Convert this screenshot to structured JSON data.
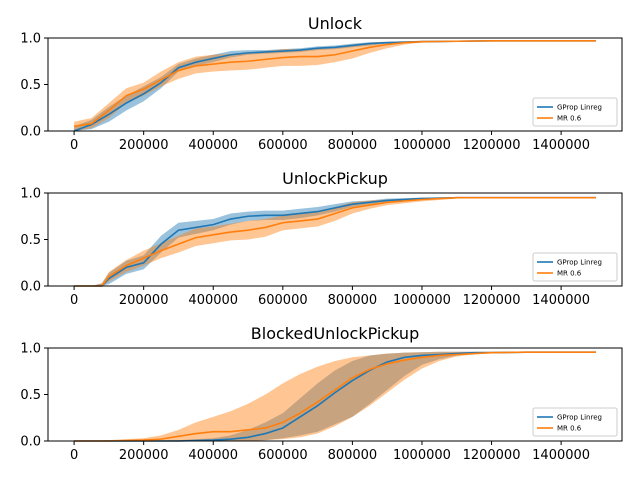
{
  "chart_data": [
    {
      "type": "line",
      "title": "Unlock",
      "xlim": [
        -75000,
        1575000
      ],
      "ylim": [
        0,
        1.0
      ],
      "xticks": [
        0,
        200000,
        400000,
        600000,
        800000,
        1000000,
        1200000,
        1400000
      ],
      "xtick_labels": [
        "0",
        "200000",
        "400000",
        "600000",
        "800000",
        "1000000",
        "1200000",
        "1400000"
      ],
      "yticks": [
        0,
        0.5,
        1.0
      ],
      "ytick_labels": [
        "0.0",
        "0.5",
        "1.0"
      ],
      "legend": "lower-right",
      "grid": false,
      "series": [
        {
          "name": "GProp Linreg",
          "color": "#1f77b4",
          "x": [
            0,
            50000,
            100000,
            150000,
            200000,
            250000,
            300000,
            350000,
            400000,
            450000,
            500000,
            550000,
            600000,
            650000,
            700000,
            750000,
            800000,
            850000,
            900000,
            950000,
            1000000,
            1100000,
            1200000,
            1300000,
            1400000,
            1500000
          ],
          "values": [
            0.0,
            0.07,
            0.18,
            0.3,
            0.4,
            0.52,
            0.68,
            0.74,
            0.78,
            0.82,
            0.84,
            0.85,
            0.86,
            0.87,
            0.89,
            0.9,
            0.92,
            0.94,
            0.95,
            0.955,
            0.96,
            0.965,
            0.97,
            0.97,
            0.97,
            0.97
          ],
          "lower": [
            0.0,
            0.02,
            0.1,
            0.22,
            0.32,
            0.46,
            0.64,
            0.7,
            0.74,
            0.79,
            0.82,
            0.83,
            0.84,
            0.85,
            0.87,
            0.88,
            0.9,
            0.92,
            0.94,
            0.945,
            0.95,
            0.96,
            0.965,
            0.965,
            0.965,
            0.965
          ],
          "upper": [
            0.05,
            0.12,
            0.26,
            0.38,
            0.48,
            0.58,
            0.72,
            0.78,
            0.82,
            0.86,
            0.87,
            0.87,
            0.88,
            0.89,
            0.91,
            0.92,
            0.94,
            0.955,
            0.96,
            0.965,
            0.97,
            0.97,
            0.975,
            0.975,
            0.975,
            0.975
          ]
        },
        {
          "name": "MR 0.6",
          "color": "#ff7f0e",
          "x": [
            0,
            50000,
            100000,
            150000,
            200000,
            250000,
            300000,
            350000,
            400000,
            450000,
            500000,
            550000,
            600000,
            650000,
            700000,
            750000,
            800000,
            850000,
            900000,
            950000,
            1000000,
            1100000,
            1200000,
            1300000,
            1400000,
            1500000
          ],
          "values": [
            0.05,
            0.08,
            0.22,
            0.38,
            0.45,
            0.55,
            0.65,
            0.7,
            0.72,
            0.74,
            0.75,
            0.77,
            0.79,
            0.8,
            0.8,
            0.82,
            0.86,
            0.9,
            0.93,
            0.95,
            0.96,
            0.965,
            0.97,
            0.97,
            0.97,
            0.97
          ],
          "lower": [
            0.0,
            0.03,
            0.14,
            0.3,
            0.38,
            0.48,
            0.56,
            0.62,
            0.64,
            0.65,
            0.66,
            0.68,
            0.7,
            0.7,
            0.71,
            0.74,
            0.78,
            0.84,
            0.89,
            0.93,
            0.95,
            0.96,
            0.965,
            0.965,
            0.965,
            0.965
          ],
          "upper": [
            0.1,
            0.14,
            0.3,
            0.46,
            0.52,
            0.64,
            0.74,
            0.8,
            0.82,
            0.83,
            0.84,
            0.86,
            0.88,
            0.88,
            0.89,
            0.9,
            0.93,
            0.95,
            0.96,
            0.965,
            0.97,
            0.97,
            0.975,
            0.975,
            0.975,
            0.975
          ]
        }
      ]
    },
    {
      "type": "line",
      "title": "UnlockPickup",
      "xlim": [
        -75000,
        1575000
      ],
      "ylim": [
        0,
        1.0
      ],
      "xticks": [
        0,
        200000,
        400000,
        600000,
        800000,
        1000000,
        1200000,
        1400000
      ],
      "xtick_labels": [
        "0",
        "200000",
        "400000",
        "600000",
        "800000",
        "1000000",
        "1200000",
        "1400000"
      ],
      "yticks": [
        0,
        0.5,
        1.0
      ],
      "ytick_labels": [
        "0.0",
        "0.5",
        "1.0"
      ],
      "legend": "lower-right",
      "grid": false,
      "series": [
        {
          "name": "GProp Linreg",
          "color": "#1f77b4",
          "x": [
            0,
            50000,
            80000,
            100000,
            150000,
            200000,
            250000,
            300000,
            350000,
            400000,
            450000,
            500000,
            550000,
            600000,
            650000,
            700000,
            750000,
            800000,
            850000,
            900000,
            1000000,
            1100000,
            1200000,
            1300000,
            1400000,
            1500000
          ],
          "values": [
            0.0,
            0.0,
            0.0,
            0.08,
            0.2,
            0.25,
            0.45,
            0.6,
            0.63,
            0.66,
            0.72,
            0.75,
            0.76,
            0.76,
            0.78,
            0.8,
            0.84,
            0.88,
            0.9,
            0.92,
            0.94,
            0.95,
            0.95,
            0.95,
            0.95,
            0.95
          ],
          "lower": [
            0.0,
            0.0,
            0.0,
            0.02,
            0.13,
            0.18,
            0.36,
            0.52,
            0.56,
            0.6,
            0.66,
            0.7,
            0.71,
            0.71,
            0.73,
            0.76,
            0.8,
            0.85,
            0.88,
            0.9,
            0.93,
            0.945,
            0.945,
            0.945,
            0.945,
            0.945
          ],
          "upper": [
            0.0,
            0.0,
            0.03,
            0.14,
            0.27,
            0.33,
            0.54,
            0.68,
            0.7,
            0.72,
            0.78,
            0.8,
            0.81,
            0.81,
            0.83,
            0.85,
            0.88,
            0.91,
            0.92,
            0.94,
            0.95,
            0.955,
            0.955,
            0.955,
            0.955,
            0.955
          ]
        },
        {
          "name": "MR 0.6",
          "color": "#ff7f0e",
          "x": [
            0,
            50000,
            80000,
            100000,
            150000,
            200000,
            250000,
            300000,
            350000,
            400000,
            450000,
            500000,
            550000,
            600000,
            650000,
            700000,
            750000,
            800000,
            850000,
            900000,
            1000000,
            1100000,
            1200000,
            1300000,
            1400000,
            1500000
          ],
          "values": [
            0.0,
            0.0,
            0.0,
            0.1,
            0.22,
            0.3,
            0.38,
            0.45,
            0.52,
            0.55,
            0.58,
            0.6,
            0.63,
            0.68,
            0.7,
            0.72,
            0.78,
            0.84,
            0.87,
            0.9,
            0.93,
            0.95,
            0.95,
            0.95,
            0.95,
            0.95
          ],
          "lower": [
            0.0,
            0.0,
            0.0,
            0.05,
            0.15,
            0.22,
            0.3,
            0.36,
            0.43,
            0.46,
            0.49,
            0.5,
            0.53,
            0.6,
            0.62,
            0.64,
            0.7,
            0.78,
            0.83,
            0.87,
            0.91,
            0.94,
            0.945,
            0.945,
            0.945,
            0.945
          ],
          "upper": [
            0.0,
            0.0,
            0.03,
            0.15,
            0.28,
            0.38,
            0.46,
            0.54,
            0.62,
            0.64,
            0.67,
            0.7,
            0.72,
            0.76,
            0.78,
            0.8,
            0.85,
            0.9,
            0.92,
            0.93,
            0.95,
            0.955,
            0.955,
            0.955,
            0.955,
            0.955
          ]
        }
      ]
    },
    {
      "type": "line",
      "title": "BlockedUnlockPickup",
      "xlim": [
        -75000,
        1575000
      ],
      "ylim": [
        0,
        1.0
      ],
      "xticks": [
        0,
        200000,
        400000,
        600000,
        800000,
        1000000,
        1200000,
        1400000
      ],
      "xtick_labels": [
        "0",
        "200000",
        "400000",
        "600000",
        "800000",
        "1000000",
        "1200000",
        "1400000"
      ],
      "yticks": [
        0,
        0.5,
        1.0
      ],
      "ytick_labels": [
        "0.0",
        "0.5",
        "1.0"
      ],
      "legend": "lower-right",
      "grid": false,
      "series": [
        {
          "name": "GProp Linreg",
          "color": "#1f77b4",
          "x": [
            0,
            100000,
            200000,
            300000,
            400000,
            450000,
            500000,
            550000,
            600000,
            650000,
            700000,
            750000,
            800000,
            850000,
            900000,
            950000,
            1000000,
            1050000,
            1100000,
            1150000,
            1200000,
            1300000,
            1400000,
            1500000
          ],
          "values": [
            0.0,
            0.0,
            0.0,
            0.0,
            0.01,
            0.02,
            0.04,
            0.08,
            0.14,
            0.26,
            0.38,
            0.52,
            0.65,
            0.76,
            0.85,
            0.9,
            0.92,
            0.93,
            0.94,
            0.95,
            0.95,
            0.955,
            0.955,
            0.955
          ],
          "lower": [
            0.0,
            0.0,
            0.0,
            0.0,
            0.0,
            0.0,
            0.0,
            0.01,
            0.03,
            0.06,
            0.1,
            0.18,
            0.26,
            0.4,
            0.55,
            0.7,
            0.82,
            0.88,
            0.92,
            0.94,
            0.945,
            0.95,
            0.95,
            0.95
          ],
          "upper": [
            0.0,
            0.0,
            0.0,
            0.01,
            0.03,
            0.06,
            0.12,
            0.2,
            0.3,
            0.46,
            0.62,
            0.76,
            0.86,
            0.92,
            0.94,
            0.95,
            0.955,
            0.96,
            0.96,
            0.96,
            0.96,
            0.96,
            0.96,
            0.96
          ]
        },
        {
          "name": "MR 0.6",
          "color": "#ff7f0e",
          "x": [
            0,
            100000,
            200000,
            250000,
            300000,
            350000,
            400000,
            450000,
            500000,
            550000,
            600000,
            650000,
            700000,
            750000,
            800000,
            850000,
            900000,
            950000,
            1000000,
            1050000,
            1100000,
            1150000,
            1200000,
            1300000,
            1400000,
            1500000
          ],
          "values": [
            0.0,
            0.0,
            0.01,
            0.02,
            0.05,
            0.08,
            0.1,
            0.1,
            0.12,
            0.14,
            0.2,
            0.3,
            0.42,
            0.55,
            0.68,
            0.77,
            0.83,
            0.87,
            0.9,
            0.92,
            0.93,
            0.94,
            0.95,
            0.955,
            0.955,
            0.955
          ],
          "lower": [
            0.0,
            0.0,
            0.0,
            0.0,
            0.0,
            0.0,
            0.0,
            0.0,
            0.0,
            0.01,
            0.02,
            0.04,
            0.08,
            0.16,
            0.26,
            0.38,
            0.52,
            0.66,
            0.78,
            0.86,
            0.91,
            0.93,
            0.945,
            0.95,
            0.95,
            0.95
          ],
          "upper": [
            0.0,
            0.01,
            0.03,
            0.06,
            0.12,
            0.2,
            0.26,
            0.32,
            0.4,
            0.5,
            0.62,
            0.72,
            0.8,
            0.86,
            0.9,
            0.92,
            0.94,
            0.95,
            0.955,
            0.96,
            0.96,
            0.96,
            0.96,
            0.96,
            0.96,
            0.96
          ]
        }
      ]
    }
  ]
}
